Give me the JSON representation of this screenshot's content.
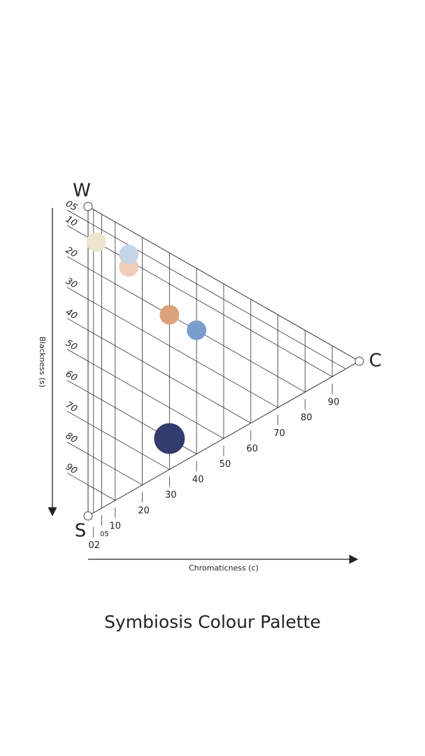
{
  "vertices": {
    "w": "W",
    "s": "S",
    "c": "C"
  },
  "blackness_axis": {
    "label": "Blackness (s)",
    "ticks": [
      "05",
      "10",
      "20",
      "30",
      "40",
      "50",
      "60",
      "70",
      "80",
      "90"
    ]
  },
  "chromaticness_axis": {
    "label": "Chromaticness (c)",
    "ticks": [
      "02",
      "05",
      "10",
      "20",
      "30",
      "40",
      "50",
      "60",
      "70",
      "80",
      "90"
    ]
  },
  "swatches": [
    {
      "color": "#ede6cc",
      "s": 10,
      "c": 3
    },
    {
      "color": "#f0cdb8",
      "s": 12,
      "c": 15
    },
    {
      "color": "#c6d5e6",
      "s": 8,
      "c": 15
    },
    {
      "color": "#dca27c",
      "s": 20,
      "c": 30
    },
    {
      "color": "#7a9dcd",
      "s": 20,
      "c": 40
    },
    {
      "color": "#323d6b",
      "s": 60,
      "c": 30
    }
  ],
  "title": "Symbiosis Colour Palette"
}
